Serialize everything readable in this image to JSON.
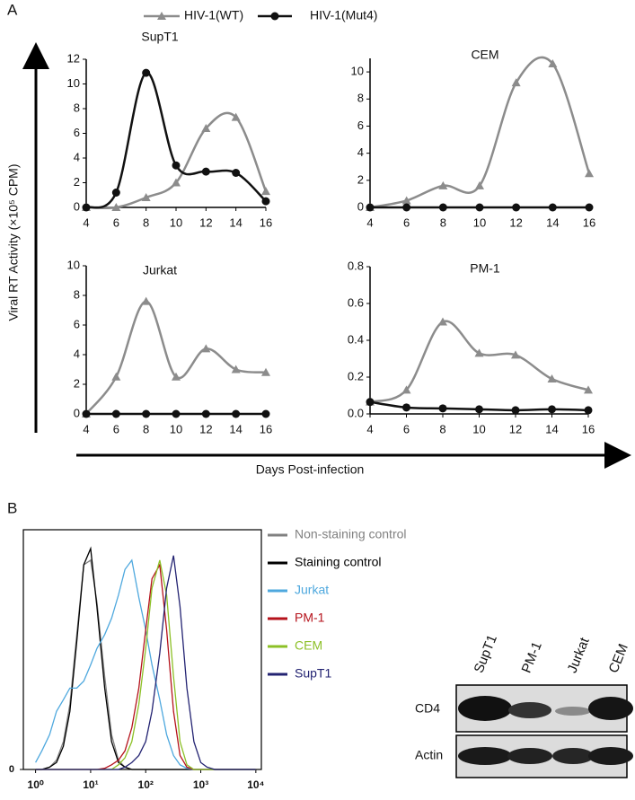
{
  "figure": {
    "panel_a": "A",
    "panel_b": "B",
    "y_label": "Viral RT Activity (×10⁵ CPM)",
    "x_label": "Days Post-infection"
  },
  "chart_data": [
    {
      "type": "line",
      "title": "SupT1",
      "x": [
        4,
        6,
        8,
        10,
        12,
        14,
        16
      ],
      "xlim": [
        4,
        16
      ],
      "xticks": [
        4,
        6,
        8,
        10,
        12,
        14,
        16
      ],
      "ylim": [
        0,
        12
      ],
      "yticks": [
        0,
        2,
        4,
        6,
        8,
        10,
        12
      ],
      "smooth": true,
      "series": [
        {
          "name": "HIV-1(WT)",
          "color": "#8c8c8c",
          "marker": "triangle",
          "values": [
            0,
            0,
            0.8,
            2,
            6.4,
            7.3,
            1.3
          ]
        },
        {
          "name": "HIV-1(Mut4)",
          "color": "#111111",
          "marker": "circle",
          "values": [
            0,
            1.2,
            10.9,
            3.4,
            2.9,
            2.8,
            0.5
          ]
        }
      ]
    },
    {
      "type": "line",
      "title": "CEM",
      "x": [
        4,
        6,
        8,
        10,
        12,
        14,
        16
      ],
      "xlim": [
        4,
        16
      ],
      "xticks": [
        4,
        6,
        8,
        10,
        12,
        14,
        16
      ],
      "ylim": [
        0,
        11
      ],
      "yticks": [
        0,
        2,
        4,
        6,
        8,
        10
      ],
      "smooth": true,
      "series": [
        {
          "color": "#8c8c8c",
          "marker": "triangle",
          "values": [
            0,
            0.5,
            1.6,
            1.6,
            9.2,
            10.6,
            2.5
          ]
        },
        {
          "color": "#111111",
          "marker": "circle",
          "values": [
            0,
            0,
            0,
            0,
            0,
            0,
            0
          ]
        }
      ]
    },
    {
      "type": "line",
      "title": "Jurkat",
      "x": [
        4,
        6,
        8,
        10,
        12,
        14,
        16
      ],
      "xlim": [
        4,
        16
      ],
      "xticks": [
        4,
        6,
        8,
        10,
        12,
        14,
        16
      ],
      "ylim": [
        0,
        10
      ],
      "yticks": [
        0,
        2,
        4,
        6,
        8,
        10
      ],
      "smooth": true,
      "series": [
        {
          "color": "#8c8c8c",
          "marker": "triangle",
          "values": [
            0,
            2.5,
            7.6,
            2.5,
            4.4,
            3,
            2.8
          ]
        },
        {
          "color": "#111111",
          "marker": "circle",
          "values": [
            0,
            0,
            0,
            0,
            0,
            0,
            0
          ]
        }
      ]
    },
    {
      "type": "line",
      "title": "PM-1",
      "x": [
        4,
        6,
        8,
        10,
        12,
        14,
        16
      ],
      "xlim": [
        4,
        16
      ],
      "xticks": [
        4,
        6,
        8,
        10,
        12,
        14,
        16
      ],
      "ylim": [
        0,
        0.8
      ],
      "yticks": [
        {
          "value": 0,
          "label": "0.0"
        },
        0.2,
        0.4,
        0.6,
        0.8
      ],
      "smooth": true,
      "series": [
        {
          "color": "#8c8c8c",
          "marker": "triangle",
          "values": [
            0.065,
            0.13,
            0.5,
            0.33,
            0.32,
            0.19,
            0.13
          ]
        },
        {
          "color": "#111111",
          "marker": "circle",
          "values": [
            0.065,
            0.035,
            0.03,
            0.025,
            0.02,
            0.025,
            0.02
          ]
        }
      ]
    },
    {
      "type": "line",
      "xscale": "log",
      "frame": true,
      "smooth": false,
      "x": [
        1,
        1.3,
        1.8,
        2.4,
        3.2,
        4.2,
        5.6,
        7.5,
        10,
        13,
        18,
        24,
        32,
        42,
        56,
        75,
        100,
        130,
        180,
        240,
        320,
        420,
        560,
        750,
        1000,
        1300,
        1800,
        2400,
        3200,
        4200,
        5600,
        7500,
        10000
      ],
      "xlim": [
        0.6,
        12600
      ],
      "xticks": [
        {
          "value": 1,
          "label": "10⁰"
        },
        {
          "value": 10,
          "label": "10¹"
        },
        {
          "value": 100,
          "label": "10²"
        },
        {
          "value": 1000,
          "label": "10³"
        },
        {
          "value": 10000,
          "label": "10⁴"
        }
      ],
      "ylim": [
        0,
        100
      ],
      "yticks": [
        0
      ],
      "series": [
        {
          "name": "Non-staining control",
          "color": "#808080",
          "values": [
            0,
            0,
            1,
            4,
            12,
            28,
            58,
            88,
            90,
            72,
            40,
            15,
            4,
            1,
            0,
            0,
            0,
            0,
            0,
            0,
            0,
            0,
            0,
            0,
            0,
            0,
            0,
            0,
            0,
            0,
            0,
            0,
            0
          ]
        },
        {
          "name": "Staining control",
          "color": "#000000",
          "values": [
            0,
            0,
            1,
            3,
            10,
            25,
            55,
            88,
            95,
            70,
            35,
            12,
            3,
            1,
            0,
            0,
            0,
            0,
            0,
            0,
            0,
            0,
            0,
            0,
            0,
            0,
            0,
            0,
            0,
            0,
            0,
            0,
            0
          ]
        },
        {
          "name": "Jurkat",
          "color": "#4ea8de",
          "values": [
            3,
            8,
            15,
            25,
            30,
            35,
            35,
            38,
            45,
            52,
            58,
            65,
            75,
            86,
            90,
            74,
            60,
            45,
            30,
            15,
            6,
            2,
            0.5,
            0,
            0,
            0,
            0,
            0,
            0,
            0,
            0,
            0,
            0
          ]
        },
        {
          "name": "PM-1",
          "color": "#b5121b",
          "values": [
            0,
            0,
            0,
            0,
            0,
            0,
            0,
            0,
            0,
            0,
            0.5,
            2,
            4,
            8,
            18,
            35,
            60,
            82,
            88,
            60,
            25,
            6,
            1,
            0,
            0,
            0,
            0,
            0,
            0,
            0,
            0,
            0,
            0
          ]
        },
        {
          "name": "CEM",
          "color": "#8cc026",
          "values": [
            0,
            0,
            0,
            0,
            0,
            0,
            0,
            0,
            0,
            0,
            0,
            0,
            2,
            5,
            12,
            28,
            52,
            78,
            90,
            75,
            40,
            12,
            2,
            0,
            0,
            0,
            0,
            0,
            0,
            0,
            0,
            0,
            0
          ]
        },
        {
          "name": "SupT1",
          "color": "#232372",
          "values": [
            0,
            0,
            0,
            0,
            0,
            0,
            0,
            0,
            0,
            0,
            0,
            0,
            0,
            1,
            3,
            6,
            12,
            25,
            50,
            78,
            92,
            70,
            35,
            12,
            3,
            1,
            0,
            0,
            0,
            0,
            0,
            0,
            0
          ]
        }
      ]
    }
  ],
  "blot": {
    "lanes": [
      "SupT1",
      "PM-1",
      "Jurkat",
      "CEM"
    ],
    "rows": [
      "CD4",
      "Actin"
    ]
  }
}
